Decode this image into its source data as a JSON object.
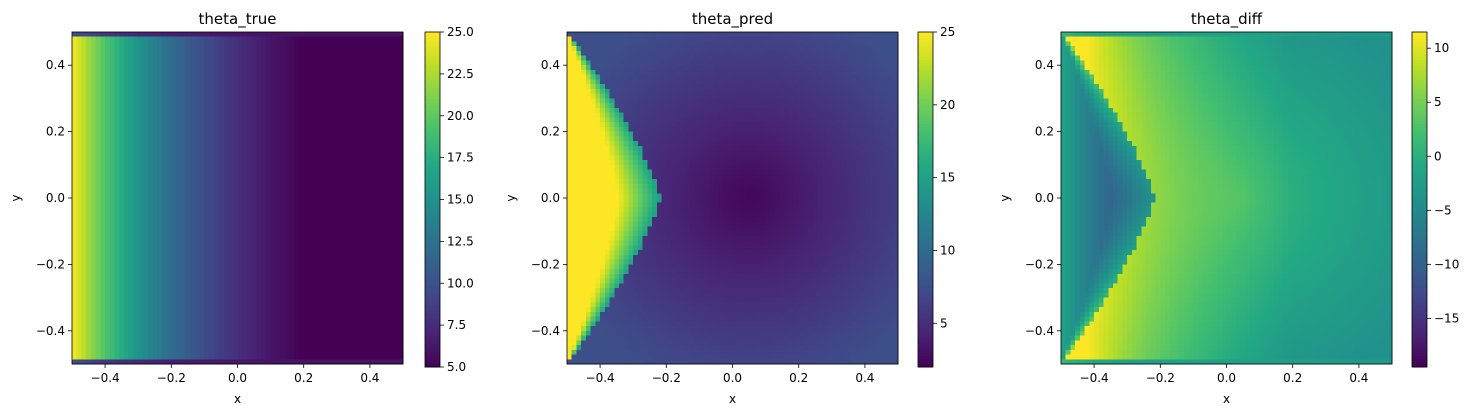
{
  "chart_data": [
    {
      "type": "heatmap",
      "title": "theta_true",
      "xlabel": "x",
      "ylabel": "y",
      "xlim": [
        -0.5,
        0.5
      ],
      "ylim": [
        -0.5,
        0.5
      ],
      "xticks": [
        -0.4,
        -0.2,
        0.0,
        0.2,
        0.4
      ],
      "xtick_labels": [
        "−0.4",
        "−0.2",
        "0.0",
        "0.2",
        "0.4"
      ],
      "yticks": [
        -0.4,
        -0.2,
        0.0,
        0.2,
        0.4
      ],
      "ytick_labels": [
        "−0.4",
        "−0.2",
        "0.0",
        "0.2",
        "0.4"
      ],
      "colorbar": {
        "range": [
          5.0,
          25.0
        ],
        "ticks": [
          5.0,
          7.5,
          10.0,
          12.5,
          15.0,
          17.5,
          20.0,
          22.5,
          25.0
        ],
        "tick_labels": [
          "5.0",
          "7.5",
          "10.0",
          "12.5",
          "15.0",
          "17.5",
          "20.0",
          "22.5",
          "25.0"
        ],
        "colormap": "viridis"
      },
      "field": "Values decrease from about 25 at the left edge (x = -0.5) to about 5 at the right edge (x = 0.5); edge values near the top and bottom boundaries are lower."
    },
    {
      "type": "heatmap",
      "title": "theta_pred",
      "xlabel": "x",
      "ylabel": "y",
      "xlim": [
        -0.5,
        0.5
      ],
      "ylim": [
        -0.5,
        0.5
      ],
      "xticks": [
        -0.4,
        -0.2,
        0.0,
        0.2,
        0.4
      ],
      "xtick_labels": [
        "−0.4",
        "−0.2",
        "0.0",
        "0.2",
        "0.4"
      ],
      "yticks": [
        -0.4,
        -0.2,
        0.0,
        0.2,
        0.4
      ],
      "ytick_labels": [
        "−0.4",
        "−0.2",
        "0.0",
        "0.2",
        "0.4"
      ],
      "colorbar": {
        "range": [
          2.0,
          25.0
        ],
        "ticks": [
          5,
          10,
          15,
          20,
          25
        ],
        "tick_labels": [
          "5",
          "10",
          "15",
          "20",
          "25"
        ],
        "colormap": "viridis"
      },
      "field": "A high region (about 25) near the left edge bounded by a curve reaching x ≈ -0.22 at y = 0; elsewhere low values (about 3-5), minimum near (0.05, 0)."
    },
    {
      "type": "heatmap",
      "title": "theta_diff",
      "xlabel": "x",
      "ylabel": "y",
      "xlim": [
        -0.5,
        0.5
      ],
      "ylim": [
        -0.5,
        0.5
      ],
      "xticks": [
        -0.4,
        -0.2,
        0.0,
        0.2,
        0.4
      ],
      "xtick_labels": [
        "−0.4",
        "−0.2",
        "0.0",
        "0.2",
        "0.4"
      ],
      "yticks": [
        -0.4,
        -0.2,
        0.0,
        0.2,
        0.4
      ],
      "ytick_labels": [
        "−0.4",
        "−0.2",
        "0.0",
        "0.2",
        "0.4"
      ],
      "colorbar": {
        "range": [
          -19.5,
          11.5
        ],
        "ticks": [
          -15,
          -10,
          -5,
          0,
          5,
          10
        ],
        "tick_labels": [
          "−15",
          "−10",
          "−5",
          "0",
          "5",
          "10"
        ],
        "colormap": "viridis"
      },
      "field": "Maximum (about 11) just right of the curved boundary near x ≈ -0.22; negative (down to about -19) in a thin band along the left edge; about 2 in the right part."
    }
  ]
}
